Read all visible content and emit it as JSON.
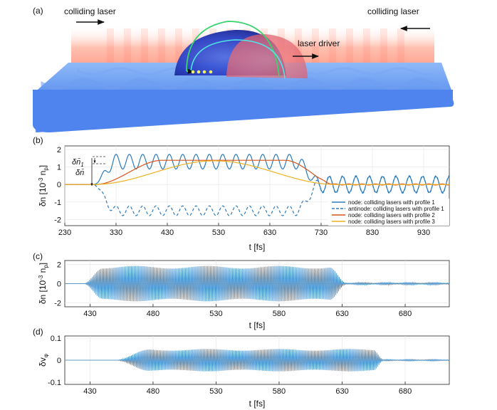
{
  "panel_a": {
    "label": "(a)",
    "colliding_left": "colliding laser",
    "colliding_right": "colliding laser",
    "driver": "laser driver"
  },
  "chart_data": [
    {
      "panel": "(b)",
      "type": "line",
      "xlabel": "t [fs]",
      "ylabel": "δn [10⁻³ n_p]",
      "ylabel_main": "δn [10",
      "ylabel_sup": "-3",
      "ylabel_end": " n",
      "ylabel_sub": "p",
      "ylabel_close": "]",
      "xlim": [
        230,
        980
      ],
      "ylim": [
        -2.35,
        2.2
      ],
      "xticks": [
        230,
        330,
        430,
        530,
        630,
        730,
        830,
        930
      ],
      "yticks": [
        -2,
        -1,
        0,
        1,
        2
      ],
      "annotations": {
        "delta_n1": "δn̄",
        "delta_n1_sub": "1",
        "delta_n": "δn̄"
      },
      "legend_position": "bottom-right",
      "series": [
        {
          "name": "node: colliding lasers with profile 1",
          "color": "#2b7bbd",
          "style": "solid",
          "rise": [
            285,
            330
          ],
          "plateau_mean": 1.3,
          "osc_amp": 0.42,
          "period_fs": 26,
          "fall": [
            680,
            730
          ],
          "tail_amp": 0.45,
          "tail_mean": 0.0
        },
        {
          "name": "antinode: colliding lasers with profile 1",
          "color": "#2b7bbd",
          "style": "dashed",
          "rise": [
            285,
            330
          ],
          "plateau_mean": -1.5,
          "osc_amp": 0.28,
          "period_fs": 26,
          "fall": [
            680,
            730
          ],
          "tail_amp": 0.5,
          "tail_mean": 0.0
        },
        {
          "name": "node: colliding lasers with profile 2",
          "color": "#d9541a",
          "style": "solid",
          "rise": [
            290,
            420
          ],
          "plateau_mean": 1.38,
          "osc_amp": 0.0,
          "fall": [
            660,
            760
          ],
          "tail_amp": 0.03,
          "tail_mean": 0.0
        },
        {
          "name": "node: colliding lasers with profile 3",
          "color": "#edb120",
          "style": "solid",
          "peak_t": 555,
          "peak": 1.35,
          "start": 285,
          "end": 760
        }
      ]
    },
    {
      "panel": "(c)",
      "type": "line",
      "xlabel": "t [fs]",
      "ylabel": "δn [10⁻³ n_p]",
      "ylabel_main": "δn [10",
      "ylabel_sup": "-3",
      "ylabel_end": " n",
      "ylabel_sub": "p",
      "ylabel_close": "]",
      "xlim": [
        410,
        715
      ],
      "ylim": [
        -2.4,
        2.4
      ],
      "xticks": [
        430,
        480,
        530,
        580,
        630,
        680
      ],
      "yticks": [
        -2,
        0,
        2
      ],
      "series": [
        {
          "name": "oscillation",
          "color": "#2b7bbd",
          "envelope_start": [
            425,
            440
          ],
          "amplitude": 1.7,
          "envelope_end": [
            620,
            633
          ],
          "tail_amp": 0.15,
          "period_fs": 1.3
        }
      ]
    },
    {
      "panel": "(d)",
      "type": "line",
      "xlabel": "t [fs]",
      "ylabel": "δv_φ",
      "ylabel_main": "δv",
      "ylabel_sub": "φ",
      "xlim": [
        410,
        715
      ],
      "ylim": [
        -0.11,
        0.11
      ],
      "xticks": [
        430,
        480,
        530,
        580,
        630,
        680
      ],
      "ytick_labels": [
        "-0.1",
        "0",
        "0.1"
      ],
      "yticks": [
        -0.1,
        0,
        0.1
      ],
      "series": [
        {
          "name": "phase velocity oscillation",
          "color": "#2b7bbd",
          "envelope_start": [
            450,
            478
          ],
          "amplitude": 0.047,
          "envelope_end": [
            655,
            663
          ],
          "tail_amp": 0.004,
          "period_fs": 1.3
        }
      ]
    }
  ]
}
